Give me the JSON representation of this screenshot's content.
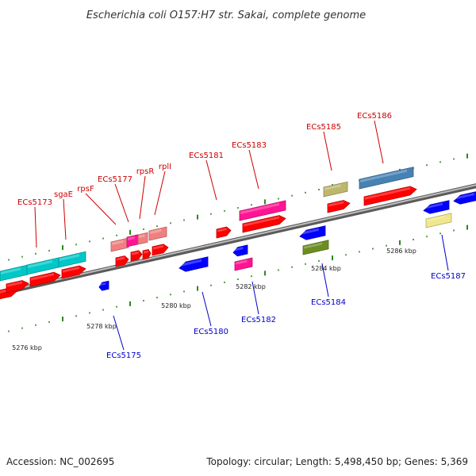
{
  "title": "Escherichia coli O157:H7 str. Sakai, complete genome",
  "footer": {
    "accession": "Accession: NC_002695",
    "topology": "Topology: circular; Length: 5,498,450 bp; Genes: 5,369"
  },
  "colors": {
    "backbone": "#8a8a8a",
    "tick_mark": "#2a8a1a",
    "forward_label": "#cc0000",
    "reverse_label": "#0000cc"
  },
  "scale_labels": [
    "5276 kbp",
    "5278 kbp",
    "5280 kbp",
    "5282 kbp",
    "5284 kbp",
    "5286 kbp"
  ],
  "genes": [
    {
      "name": "ECs5173",
      "strand": "+",
      "color": "#00c8c8"
    },
    {
      "name": "sgaE",
      "strand": "+",
      "color": "#00c8c8"
    },
    {
      "name": "rpsF",
      "strand": "+",
      "color": "#f08080"
    },
    {
      "name": "ECs5175",
      "strand": "-",
      "color": "#0000ff"
    },
    {
      "name": "ECs5177",
      "strand": "+",
      "color": "#ff1493"
    },
    {
      "name": "rpsR",
      "strand": "+",
      "color": "#f08080"
    },
    {
      "name": "rplI",
      "strand": "+",
      "color": "#f08080"
    },
    {
      "name": "ECs5180",
      "strand": "-",
      "color": "#0000ff"
    },
    {
      "name": "ECs5181",
      "strand": "+",
      "color": "#ff0000"
    },
    {
      "name": "ECs5182",
      "strand": "-",
      "color": "#ff1493"
    },
    {
      "name": "ECs5183",
      "strand": "+",
      "color": "#ff1493"
    },
    {
      "name": "ECs5184",
      "strand": "-",
      "color": "#6b8e23"
    },
    {
      "name": "ECs5185",
      "strand": "+",
      "color": "#bdb76b"
    },
    {
      "name": "ECs5186",
      "strand": "+",
      "color": "#4682b4"
    },
    {
      "name": "ECs5187",
      "strand": "-",
      "color": "#f0e68c"
    }
  ]
}
